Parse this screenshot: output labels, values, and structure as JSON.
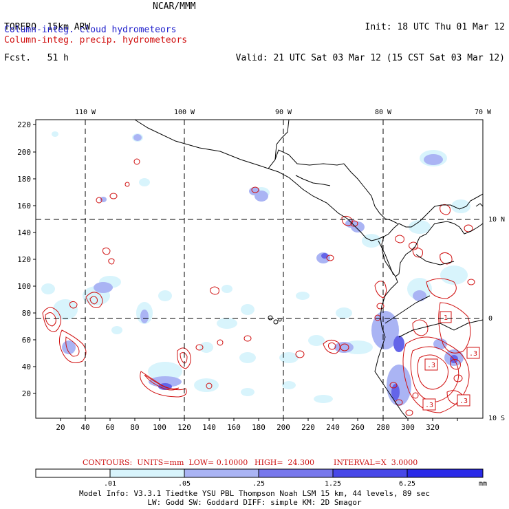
{
  "header": {
    "model_line": "TORERO  15km ARW",
    "fcst_line": "Fcst.   51 h",
    "center_title": "NCAR/MMM",
    "init_line": "Init: 18 UTC Thu 01 Mar 12",
    "valid_line": "Valid: 21 UTC Sat 03 Mar 12 (15 CST Sat 03 Mar 12)"
  },
  "fields": {
    "cloud_label": "Column-integ. cloud hydrometeors",
    "precip_label": "Column-integ. precip. hydrometeors",
    "cloud_color": "#2020cc",
    "precip_color": "#d01010"
  },
  "map": {
    "top_lon_labels": [
      "110 W",
      "100 W",
      "90 W",
      "80 W",
      "70 W"
    ],
    "right_lat_labels": [
      "10 N",
      "0",
      "10 S"
    ],
    "y_ticks": [
      "220",
      "200",
      "180",
      "160",
      "140",
      "120",
      "100",
      "80",
      "60",
      "40",
      "20"
    ],
    "x_ticks": [
      "20",
      "40",
      "60",
      "80",
      "100",
      "120",
      "140",
      "160",
      "180",
      "200",
      "220",
      "240",
      "260",
      "280",
      "300",
      "320"
    ]
  },
  "contours": {
    "units": "CONTOURS:  UNITS=mm  LOW= 0.10000",
    "high": "HIGH=  24.300",
    "interval": "INTERVAL=X  3.0000",
    "box_labels": [
      ".3",
      ".3",
      "1",
      ".3",
      ".3"
    ]
  },
  "colorbar": {
    "levels": [
      ".01",
      ".05",
      ".25",
      "1.25",
      "6.25"
    ],
    "unit": "mm",
    "colors": [
      "#ffffff",
      "#d8f4fc",
      "#aab4f4",
      "#7878ec",
      "#4848e8",
      "#2a2ae8"
    ]
  },
  "model_info": {
    "line1": "Model Info: V3.3.1   Tiedtke YSU PBL  Thompson    Noah LSM  15 km,   44 levels,   89 sec",
    "line2": "LW: Godd SW: Goddard DIFF: simple KM: 2D Smagor"
  }
}
